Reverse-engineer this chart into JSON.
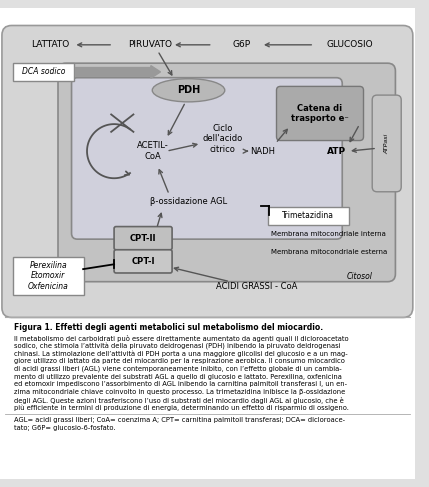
{
  "bg_color": "#e0e0e0",
  "title_text": "Figura 1. Effetti degli agenti metabolici sul metabolismo del miocardio.",
  "body_lines": [
    "Il metabolismo dei carboidrati può essere direttamente aumentato da agenti quali il dicloroacetato",
    "sodico, che stimola l’attività della piruvato deidrogenasi (PDH) inibendo la piruvato deidrogenasi",
    "chinasi. La stimolazione dell’attività di PDH porta a una maggiore glicolisi del glucosio e a un mag-",
    "giore utilizzo di lattato da parte del miocardio per la respirazione aerobica. Il consumo miocardico",
    "di acidi grassi liberi (AGL) viene contemporaneamente inibito, con l’effetto globale di un cambia-",
    "mento di utilizzo prevalente dei substrati AGL a quello di glucosio e lattato. Perexilina, oxfenicina",
    "ed etomoxir impediscono l’assorbimento di AGL inibendo la carnitina palmitoil transferasi I, un en-",
    "zima mitocondriale chiave coinvolto in questo processo. La trimetazidina inibisce la β-ossidazione",
    "degli AGL. Queste azioni trasferiscono l’uso di substrati del miocardio dagli AGL al glucosio, che è",
    "più efficiente in termini di produzione di energia, determinando un effetto di risparmio di ossigeno."
  ],
  "footnote_lines": [
    "AGL= acidi grassi liberi; CoA= coenzima A; CPT= carnitina palmitoil transferasi; DCA= dicloroace-",
    "tato; G6P= glucosio-6-fosfato."
  ]
}
